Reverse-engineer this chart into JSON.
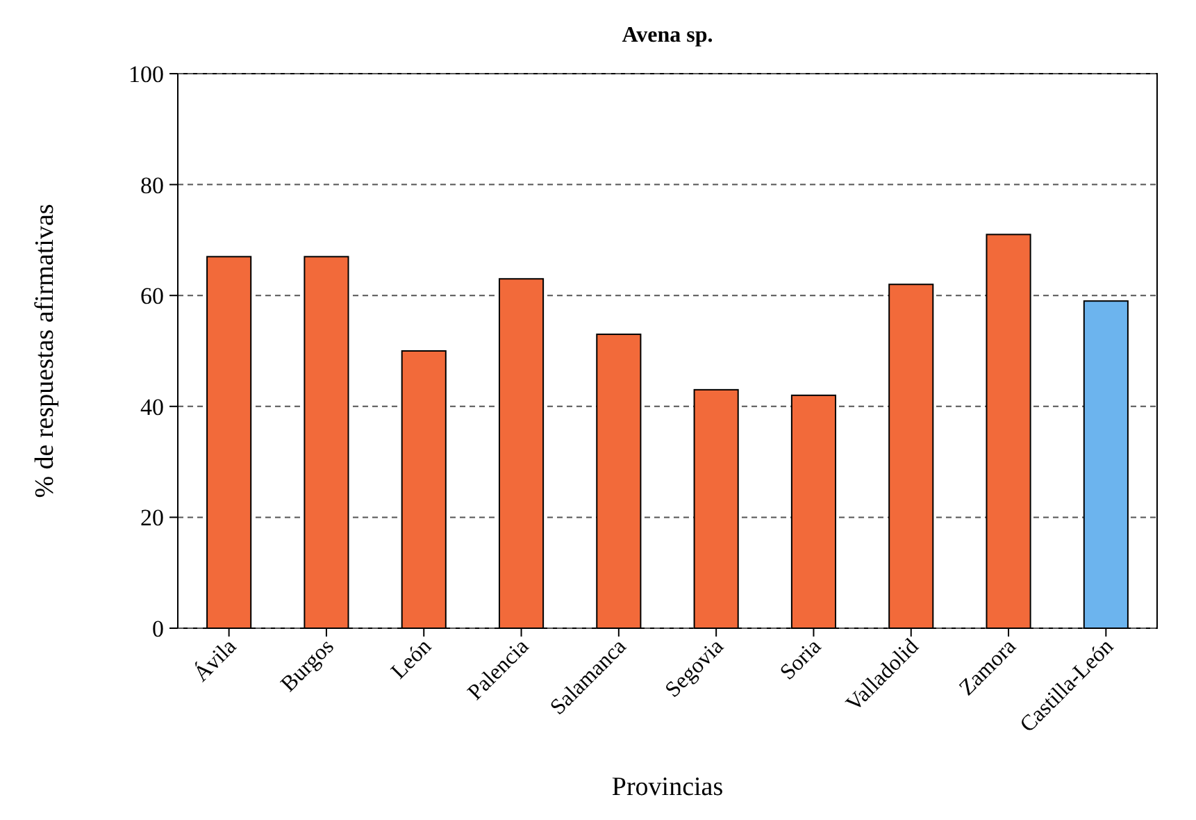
{
  "chart_data": {
    "type": "bar",
    "title": "Avena sp.",
    "xlabel": "Provincias",
    "ylabel": "% de respuestas afirmativas",
    "categories": [
      "Ávila",
      "Burgos",
      "León",
      "Palencia",
      "Salamanca",
      "Segovia",
      "Soria",
      "Valladolid",
      "Zamora",
      "Castilla-León"
    ],
    "values": [
      67,
      67,
      50,
      63,
      53,
      43,
      42,
      62,
      71,
      59
    ],
    "colors": [
      "#f26a3a",
      "#f26a3a",
      "#f26a3a",
      "#f26a3a",
      "#f26a3a",
      "#f26a3a",
      "#f26a3a",
      "#f26a3a",
      "#f26a3a",
      "#6cb4ee"
    ],
    "ylim": [
      0,
      100
    ],
    "yticks": [
      0,
      20,
      40,
      60,
      80,
      100
    ],
    "grid": "y"
  }
}
